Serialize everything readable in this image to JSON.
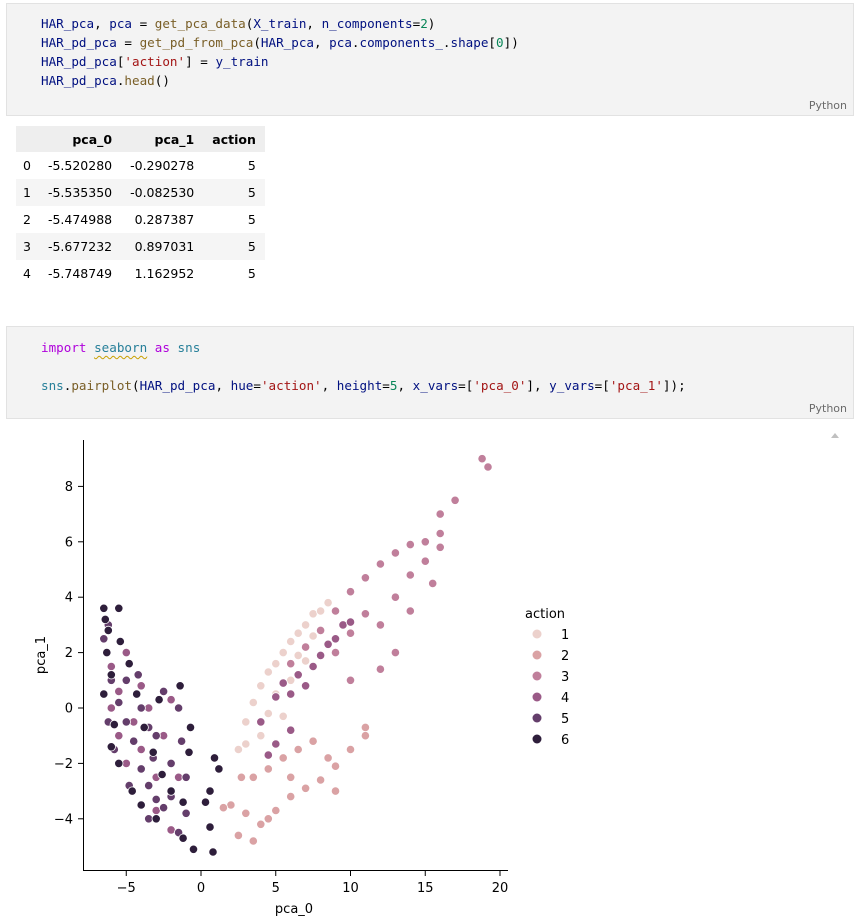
{
  "cell1": {
    "lang": "Python",
    "line1": {
      "a": "HAR_pca",
      "b": ", ",
      "c": "pca",
      "d": " = ",
      "e": "get_pca_data",
      "f": "(",
      "g": "X_train",
      "h": ", ",
      "i": "n_components",
      "j": "=",
      "k": "2",
      "l": ")"
    },
    "line2": {
      "a": "HAR_pd_pca",
      "b": " = ",
      "c": "get_pd_from_pca",
      "d": "(",
      "e": "HAR_pca",
      "f": ", ",
      "g": "pca",
      "h": ".",
      "i": "components_",
      "j": ".",
      "k": "shape",
      "l": "[",
      "m": "0",
      "n": "])"
    },
    "line3": {
      "a": "HAR_pd_pca",
      "b": "[",
      "c": "'action'",
      "d": "] = ",
      "e": "y_train"
    },
    "line4": {
      "a": "HAR_pd_pca",
      "b": ".",
      "c": "head",
      "d": "()"
    }
  },
  "dataframe": {
    "columns": [
      "",
      "pca_0",
      "pca_1",
      "action"
    ],
    "rows": [
      {
        "idx": "0",
        "pca_0": "-5.520280",
        "pca_1": "-0.290278",
        "action": "5"
      },
      {
        "idx": "1",
        "pca_0": "-5.535350",
        "pca_1": "-0.082530",
        "action": "5"
      },
      {
        "idx": "2",
        "pca_0": "-5.474988",
        "pca_1": "0.287387",
        "action": "5"
      },
      {
        "idx": "3",
        "pca_0": "-5.677232",
        "pca_1": "0.897031",
        "action": "5"
      },
      {
        "idx": "4",
        "pca_0": "-5.748749",
        "pca_1": "1.162952",
        "action": "5"
      }
    ]
  },
  "cell2": {
    "lang": "Python",
    "line1": {
      "a": "import",
      "b": " ",
      "c": "seaborn",
      "d": " ",
      "e": "as",
      "f": " ",
      "g": "sns"
    },
    "line2": {
      "a": "sns",
      "b": ".",
      "c": "pairplot",
      "d": "(",
      "e": "HAR_pd_pca",
      "f": ", ",
      "g": "hue",
      "h": "=",
      "i": "'action'",
      "j": ", ",
      "k": "height",
      "l": "=",
      "m": "5",
      "n": ", ",
      "o": "x_vars",
      "p": "=[",
      "q": "'pca_0'",
      "r": "], ",
      "s": "y_vars",
      "t": "=[",
      "u": "'pca_1'",
      "v": "]);"
    }
  },
  "chart_data": {
    "type": "scatter",
    "xlabel": "pca_0",
    "ylabel": "pca_1",
    "xlim": [
      -8,
      21
    ],
    "ylim": [
      -5.8,
      9.6
    ],
    "xticks": [
      -5,
      0,
      5,
      10,
      15,
      20
    ],
    "yticks": [
      -4,
      -2,
      0,
      2,
      4,
      6,
      8
    ],
    "xtick_labels": [
      "−5",
      "0",
      "5",
      "10",
      "15",
      "20"
    ],
    "ytick_labels": [
      "−4",
      "−2",
      "0",
      "2",
      "4",
      "6",
      "8"
    ],
    "grid": false,
    "legend_title": "action",
    "legend_placement": "right",
    "series": [
      {
        "name": "1",
        "color": "#ecd1cc",
        "points": [
          [
            3,
            -0.5
          ],
          [
            3.5,
            0.2
          ],
          [
            4,
            0.8
          ],
          [
            4.5,
            1.3
          ],
          [
            5,
            1.6
          ],
          [
            5.5,
            2
          ],
          [
            6,
            2.4
          ],
          [
            6.5,
            2.7
          ],
          [
            7,
            3
          ],
          [
            7.5,
            3.4
          ],
          [
            8,
            3.5
          ],
          [
            4,
            -1
          ],
          [
            5,
            0.5
          ],
          [
            6,
            1
          ],
          [
            7,
            1.7
          ],
          [
            5.5,
            -0.3
          ],
          [
            4.5,
            -0.2
          ],
          [
            3,
            -1.3
          ],
          [
            2.5,
            -1.5
          ],
          [
            6.5,
            1.9
          ],
          [
            8.5,
            3.8
          ],
          [
            7.5,
            2.6
          ]
        ]
      },
      {
        "name": "2",
        "color": "#daa2a4",
        "points": [
          [
            2,
            -3.5
          ],
          [
            3,
            -3.8
          ],
          [
            4,
            -4.2
          ],
          [
            5,
            -3.7
          ],
          [
            6,
            -3.2
          ],
          [
            7,
            -2.9
          ],
          [
            8,
            -2.6
          ],
          [
            9,
            -2.1
          ],
          [
            10,
            -1.5
          ],
          [
            11,
            -1
          ],
          [
            3.5,
            -2.5
          ],
          [
            4.5,
            -2.2
          ],
          [
            5.5,
            -1.8
          ],
          [
            6.5,
            -1.5
          ],
          [
            7.5,
            -1.2
          ],
          [
            2.5,
            -4.6
          ],
          [
            3.5,
            -4.8
          ],
          [
            4.5,
            -4
          ],
          [
            6,
            -2.5
          ],
          [
            8.5,
            -1.8
          ],
          [
            11,
            -0.7
          ],
          [
            9,
            -3
          ],
          [
            2.7,
            -2.5
          ],
          [
            1.5,
            -3.6
          ]
        ]
      },
      {
        "name": "3",
        "color": "#c07f9b",
        "points": [
          [
            6,
            1.6
          ],
          [
            7,
            2.2
          ],
          [
            8,
            2.8
          ],
          [
            9,
            3.5
          ],
          [
            10,
            4.2
          ],
          [
            11,
            4.7
          ],
          [
            12,
            5.2
          ],
          [
            13,
            5.6
          ],
          [
            14,
            5.9
          ],
          [
            15,
            6
          ],
          [
            16,
            7
          ],
          [
            17,
            7.5
          ],
          [
            18.8,
            9
          ],
          [
            19.2,
            8.7
          ],
          [
            9,
            2
          ],
          [
            10,
            2.7
          ],
          [
            11,
            3.4
          ],
          [
            12,
            3
          ],
          [
            13,
            4
          ],
          [
            14,
            4.8
          ],
          [
            15,
            5.3
          ],
          [
            16,
            6.3
          ],
          [
            13,
            2
          ],
          [
            14,
            3.5
          ],
          [
            12,
            1.4
          ],
          [
            10,
            1
          ],
          [
            15.5,
            4.5
          ],
          [
            16,
            5.8
          ]
        ]
      },
      {
        "name": "4",
        "color": "#9a5a87",
        "points": [
          [
            5,
            0.4
          ],
          [
            5.5,
            0.9
          ],
          [
            6,
            0.5
          ],
          [
            6.5,
            1.2
          ],
          [
            7,
            0.8
          ],
          [
            7.5,
            1.5
          ],
          [
            8,
            1.9
          ],
          [
            8.5,
            2.3
          ],
          [
            9,
            2.5
          ],
          [
            9.5,
            3
          ],
          [
            10,
            3.1
          ],
          [
            4,
            -0.5
          ],
          [
            5,
            -1.3
          ],
          [
            6,
            -0.8
          ],
          [
            4.5,
            -1.7
          ],
          [
            -6,
            0
          ],
          [
            -5.5,
            -1
          ],
          [
            -5,
            -2
          ],
          [
            -4.5,
            -0.5
          ],
          [
            -4,
            -1.5
          ],
          [
            -3.5,
            0
          ],
          [
            -3,
            -2.5
          ],
          [
            -2.5,
            -1
          ],
          [
            -2,
            0.3
          ],
          [
            -6,
            1.5
          ],
          [
            -5,
            2
          ],
          [
            -4,
            0.8
          ],
          [
            -3,
            -3.7
          ],
          [
            -2,
            -4.4
          ],
          [
            -1.5,
            -2.5
          ],
          [
            -5.5,
            0.6
          ],
          [
            -3.5,
            -2.8
          ]
        ]
      },
      {
        "name": "5",
        "color": "#643e6b",
        "points": [
          [
            -6.5,
            2.5
          ],
          [
            -6,
            1
          ],
          [
            -5.5,
            0.2
          ],
          [
            -5,
            -0.5
          ],
          [
            -4.5,
            -1.2
          ],
          [
            -4,
            -2.2
          ],
          [
            -3.5,
            -2.8
          ],
          [
            -3,
            -3.3
          ],
          [
            -2.5,
            -3.6
          ],
          [
            -2,
            -3.2
          ],
          [
            -5,
            1
          ],
          [
            -4,
            0
          ],
          [
            -3,
            -1
          ],
          [
            -2,
            -2
          ],
          [
            -1,
            -2.5
          ],
          [
            -1.5,
            0
          ],
          [
            -2.5,
            0.6
          ],
          [
            -3.5,
            -0.7
          ],
          [
            -6.2,
            -0.5
          ],
          [
            -5.8,
            -1.5
          ],
          [
            -4.8,
            -2.8
          ],
          [
            -3.5,
            -4
          ],
          [
            -1.5,
            -4.5
          ],
          [
            -1,
            -3.8
          ],
          [
            -1.3,
            -1.2
          ],
          [
            -4.2,
            1.2
          ],
          [
            -3.2,
            -1.8
          ],
          [
            -6.2,
            3
          ]
        ]
      },
      {
        "name": "6",
        "color": "#2e1e3b",
        "points": [
          [
            -6.5,
            3.6
          ],
          [
            -6.4,
            3.2
          ],
          [
            -6.2,
            2.8
          ],
          [
            -6.3,
            2
          ],
          [
            -6,
            1.2
          ],
          [
            -6.5,
            0.5
          ],
          [
            -5.8,
            -0.6
          ],
          [
            -6,
            -1.4
          ],
          [
            -5.5,
            -2
          ],
          [
            -4.6,
            -3
          ],
          [
            -4,
            -3.5
          ],
          [
            -3,
            -4
          ],
          [
            -5.4,
            2.4
          ],
          [
            -4.8,
            1.6
          ],
          [
            -4.3,
            0.5
          ],
          [
            -3.8,
            -0.7
          ],
          [
            -3.2,
            -1.6
          ],
          [
            -2.6,
            -2.4
          ],
          [
            -2,
            -3
          ],
          [
            -1.2,
            -3.4
          ],
          [
            -0.8,
            -1.6
          ],
          [
            -1.4,
            0.8
          ],
          [
            -0.7,
            -0.7
          ],
          [
            0.9,
            -1.8
          ],
          [
            1.2,
            -2.2
          ],
          [
            0.6,
            -3
          ],
          [
            0.3,
            -3.4
          ],
          [
            0.6,
            -4.3
          ],
          [
            0.8,
            -5.2
          ],
          [
            -0.5,
            -5.1
          ],
          [
            -1.2,
            -4.7
          ],
          [
            -5.5,
            3.6
          ],
          [
            -2.8,
            0.3
          ]
        ]
      }
    ]
  }
}
